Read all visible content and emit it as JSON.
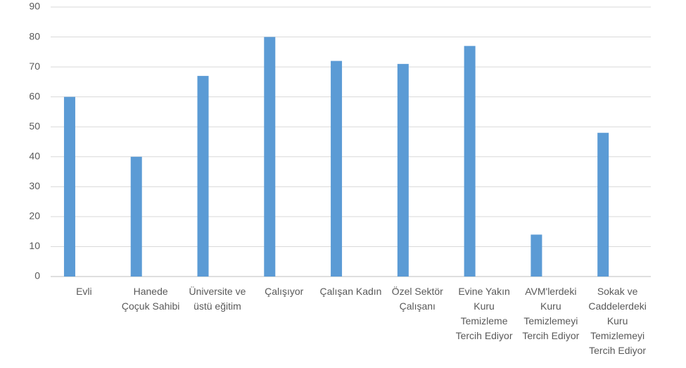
{
  "chart_data": {
    "type": "bar",
    "categories": [
      "Evli",
      "Hanede Çoçuk Sahibi",
      "Üniversite ve üstü eğitim",
      "Çalışıyor",
      "Çalışan Kadın",
      "Özel Sektör Çalışanı",
      "Evine Yakın Kuru Temizleme Tercih Ediyor",
      "AVM'lerdeki Kuru Temizlemeyi Tercih Ediyor",
      "Sokak ve Caddelerdeki Kuru Temizlemeyi Tercih Ediyor"
    ],
    "values": [
      60,
      40,
      67,
      80,
      72,
      71,
      77,
      14,
      48
    ],
    "color": "#5b9bd5",
    "ylim": [
      0,
      90
    ],
    "yticks": [
      0,
      10,
      20,
      30,
      40,
      50,
      60,
      70,
      80,
      90
    ],
    "grid": true
  }
}
